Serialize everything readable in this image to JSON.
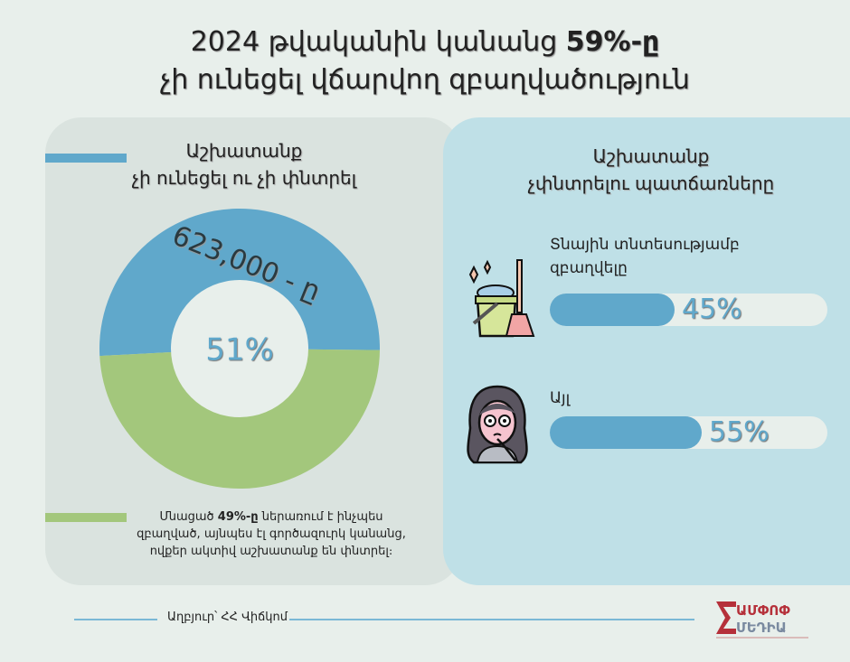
{
  "title": {
    "line1_prefix": "2024 թվականին կանանց ",
    "line1_bold": "59%-ը",
    "line2": "չի ունեցել վճարվող զբաղվածություն"
  },
  "left_panel": {
    "heading_line1": "Աշխատանք",
    "heading_line2": "չի ունեցել ու չի փնտրել",
    "donut_label": "623,000 - ը",
    "center_label": "51%",
    "note_prefix": "Մնացած ",
    "note_bold": "49%-ը",
    "note_rest": " ներառում է ինչպես զբաղված, այնպես էլ գործազուրկ կանանց, ովքեր ակտիվ աշխատանք են փնտրել։"
  },
  "right_panel": {
    "heading_line1": "Աշխատանք",
    "heading_line2": "չփնտրելու պատճառները",
    "reasons": [
      {
        "label_line1": "Տնային տնտեսությամբ",
        "label_line2": "զբաղվելը",
        "value_label": "45%",
        "icon": "cleaning-bucket-broom-icon"
      },
      {
        "label_line1": "Այլ",
        "label_line2": "",
        "value_label": "55%",
        "icon": "thinking-woman-icon"
      }
    ]
  },
  "footer": {
    "source": "Աղբյուր՝ ՀՀ Վիճկոմ",
    "logo_text": "ԱՄՓՈՓ ՄԵԴԻԱ"
  },
  "colors": {
    "blue": "#60a8cb",
    "green": "#a3c77c",
    "logo_red": "#b5303a",
    "logo_gray": "#7a8aa0"
  },
  "chart_data": [
    {
      "type": "pie",
      "variant": "donut",
      "categories": [
        "Աշխատանք չի ունեցել ու չի փնտրել",
        "Մնացած"
      ],
      "values": [
        51,
        49
      ],
      "colors": [
        "#60a8cb",
        "#a3c77c"
      ]
    },
    {
      "type": "bar",
      "orientation": "horizontal",
      "categories": [
        "Տնային տնտեսությամբ զբաղվելը",
        "Այլ"
      ],
      "values": [
        45,
        55
      ],
      "xlim": [
        0,
        100
      ]
    }
  ]
}
